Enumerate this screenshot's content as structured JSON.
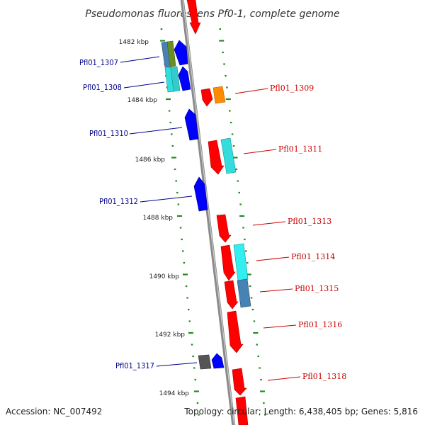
{
  "title": "Pseudomonas fluorescens Pf0-1, complete genome",
  "accession_text": "Accession: NC_007492",
  "summary_text": "Topology: circular; Length: 6,438,405 bp; Genes: 5,816",
  "scale_labels": [
    "1482 kbp",
    "1484 kbp",
    "1486 kbp",
    "1488 kbp",
    "1490 kbp",
    "1492 kbp",
    "1494 kbp"
  ],
  "gene_labels_left": [
    "Pfl01_1307",
    "Pfl01_1308",
    "Pfl01_1310",
    "Pfl01_1312",
    "Pfl01_1317"
  ],
  "gene_labels_right": [
    "Pfl01_1309",
    "Pfl01_1311",
    "Pfl01_1313",
    "Pfl01_1314",
    "Pfl01_1315",
    "Pfl01_1316",
    "Pfl01_1318"
  ],
  "colors": {
    "forward": "#ff0000",
    "reverse": "#0000ff",
    "cyan": "#33cccc",
    "orange": "#ff8c00",
    "steel": "#4682b4",
    "olive": "#6b8e23",
    "gray": "#555555",
    "tick": "#228b22",
    "backbone": "#888888",
    "label_left": "#00008b",
    "label_right": "#cc0000"
  }
}
